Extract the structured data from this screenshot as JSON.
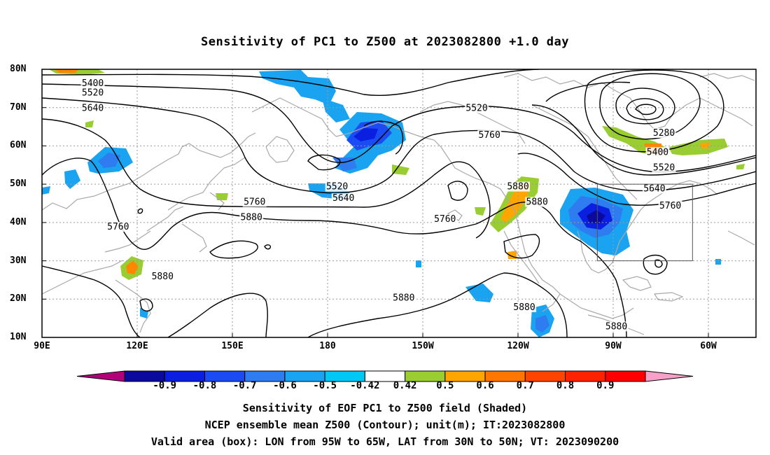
{
  "title": "Sensitivity of PC1 to Z500 at 2023082800 +1.0 day",
  "lat_ticks": [
    {
      "label": "80N",
      "value": 80
    },
    {
      "label": "70N",
      "value": 70
    },
    {
      "label": "60N",
      "value": 60
    },
    {
      "label": "50N",
      "value": 50
    },
    {
      "label": "40N",
      "value": 40
    },
    {
      "label": "30N",
      "value": 30
    },
    {
      "label": "20N",
      "value": 20
    },
    {
      "label": "10N",
      "value": 10
    }
  ],
  "lon_ticks": [
    {
      "label": "90E",
      "value": 90
    },
    {
      "label": "120E",
      "value": 120
    },
    {
      "label": "150E",
      "value": 150
    },
    {
      "label": "180",
      "value": 180
    },
    {
      "label": "150W",
      "value": 210
    },
    {
      "label": "120W",
      "value": 240
    },
    {
      "label": "90W",
      "value": 270
    },
    {
      "label": "60W",
      "value": 300
    }
  ],
  "map_extent": {
    "lon_min": 90,
    "lon_max": 315,
    "lat_min": 10,
    "lat_max": 80
  },
  "contour_labels": [
    {
      "text": "5400",
      "lon": 106,
      "lat": 76
    },
    {
      "text": "5520",
      "lon": 106,
      "lat": 73.5
    },
    {
      "text": "5640",
      "lon": 106,
      "lat": 69.5
    },
    {
      "text": "5520",
      "lon": 227,
      "lat": 69.5
    },
    {
      "text": "5760",
      "lon": 231,
      "lat": 62.5
    },
    {
      "text": "5280",
      "lon": 286,
      "lat": 63
    },
    {
      "text": "5400",
      "lon": 284,
      "lat": 58
    },
    {
      "text": "5520",
      "lon": 286,
      "lat": 54
    },
    {
      "text": "5520",
      "lon": 183,
      "lat": 49
    },
    {
      "text": "5640",
      "lon": 185,
      "lat": 46
    },
    {
      "text": "5640",
      "lon": 283,
      "lat": 48.5
    },
    {
      "text": "5760",
      "lon": 157,
      "lat": 45
    },
    {
      "text": "5880",
      "lon": 156,
      "lat": 41
    },
    {
      "text": "5760",
      "lon": 217,
      "lat": 40.5
    },
    {
      "text": "5880",
      "lon": 240,
      "lat": 49
    },
    {
      "text": "5880",
      "lon": 246,
      "lat": 45
    },
    {
      "text": "5760",
      "lon": 288,
      "lat": 44
    },
    {
      "text": "5760",
      "lon": 114,
      "lat": 38.5
    },
    {
      "text": "5880",
      "lon": 128,
      "lat": 25.5
    },
    {
      "text": "5880",
      "lon": 204,
      "lat": 20
    },
    {
      "text": "5880",
      "lon": 242,
      "lat": 17.5
    },
    {
      "text": "5880",
      "lon": 271,
      "lat": 12.5
    }
  ],
  "colorbar": {
    "colors": [
      "#b3007a",
      "#0a0a9c",
      "#0a1fe0",
      "#1b4bf2",
      "#2e7cf0",
      "#1aa3f0",
      "#00c8f5",
      "#ffffff",
      "#9acd32",
      "#ffa500",
      "#ff7700",
      "#ff4400",
      "#ff2200",
      "#ff0000",
      "#f7a0c8"
    ],
    "labels": [
      "-0.9",
      "-0.8",
      "-0.7",
      "-0.6",
      "-0.5",
      "-0.42",
      "0.42",
      "0.5",
      "0.6",
      "0.7",
      "0.8",
      "0.9"
    ]
  },
  "captions": [
    "Sensitivity of EOF PC1 to Z500 field (Shaded)",
    "NCEP ensemble mean Z500 (Contour); unit(m); IT:2023082800",
    "Valid area (box): LON from 95W to 65W, LAT from 30N to 50N; VT: 2023090200"
  ],
  "valid_box": {
    "lon_w": -95,
    "lon_e": -65,
    "lat_s": 30,
    "lat_n": 50
  }
}
